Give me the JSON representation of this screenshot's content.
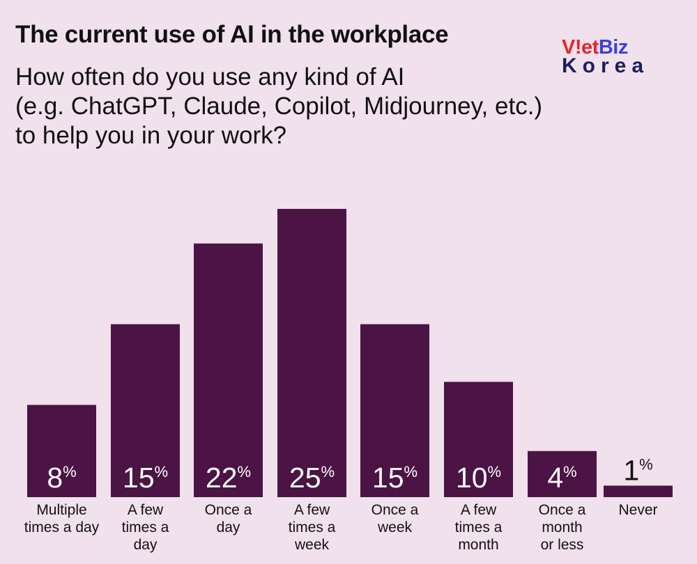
{
  "title": "The current use of AI in the workplace",
  "subtitle_lines": [
    "How often do you use any kind of AI",
    "(e.g. ChatGPT, Claude, Copilot, Midjourney, etc.)",
    "to help you in your work?"
  ],
  "logo": {
    "part1": "V",
    "part2": "!",
    "part3": "et",
    "part4": "Biz",
    "bottom": "Korea",
    "colors": {
      "red": "#e8232a",
      "blue": "#3b3fe3",
      "navy": "#1a1f5e"
    }
  },
  "colors": {
    "background": "#f1e1ec",
    "bar": "#4b1445",
    "bar_text": "#ffffff",
    "text": "#111111"
  },
  "chart_data": {
    "type": "bar",
    "title": "The current use of AI in the workplace",
    "subtitle": "How often do you use any kind of AI (e.g. ChatGPT, Claude, Copilot, Midjourney, etc.) to help you in your work?",
    "unit": "%",
    "categories": [
      [
        "Multiple",
        "times a day"
      ],
      [
        "A few",
        "times a",
        "day"
      ],
      [
        "Once a",
        "day"
      ],
      [
        "A few",
        "times a",
        "week"
      ],
      [
        "Once a",
        "week"
      ],
      [
        "A few",
        "times a",
        "month"
      ],
      [
        "Once a",
        "month",
        "or less"
      ],
      [
        "Never"
      ]
    ],
    "values": [
      8,
      15,
      22,
      25,
      15,
      10,
      4,
      1
    ],
    "ylim": [
      0,
      25
    ],
    "grid": false,
    "legend": "none"
  }
}
